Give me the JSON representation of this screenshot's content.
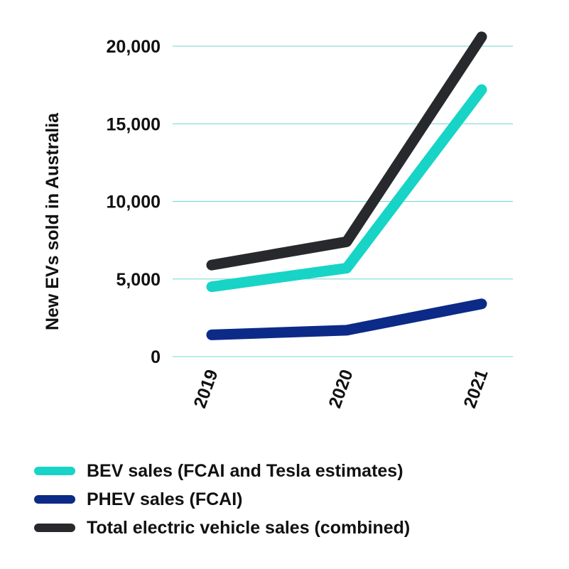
{
  "chart_data": {
    "type": "line",
    "x": [
      "2019",
      "2020",
      "2021"
    ],
    "ylabel": "New EVs sold in Australia",
    "ylim": [
      0,
      20000
    ],
    "yticks": [
      0,
      5000,
      10000,
      15000,
      20000
    ],
    "ytick_labels": [
      "0",
      "5,000",
      "10,000",
      "15,000",
      "20,000"
    ],
    "grid": "horizontal",
    "legend_position": "bottom",
    "series": [
      {
        "name": "BEV sales (FCAI and Tesla estimates)",
        "color": "#17d4c6",
        "values": [
          4500,
          5700,
          17200
        ]
      },
      {
        "name": "PHEV sales (FCAI)",
        "color": "#0c2a87",
        "values": [
          1400,
          1700,
          3400
        ]
      },
      {
        "name": "Total electric vehicle sales (combined)",
        "color": "#27292c",
        "values": [
          5900,
          7400,
          20600
        ]
      }
    ]
  },
  "colors": {
    "grid": "#6fd6cf",
    "text": "#111111"
  }
}
